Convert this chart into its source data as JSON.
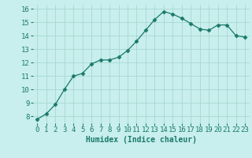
{
  "x": [
    0,
    1,
    2,
    3,
    4,
    5,
    6,
    7,
    8,
    9,
    10,
    11,
    12,
    13,
    14,
    15,
    16,
    17,
    18,
    19,
    20,
    21,
    22,
    23
  ],
  "y": [
    7.8,
    8.2,
    8.9,
    10.0,
    11.0,
    11.2,
    11.9,
    12.2,
    12.2,
    12.4,
    12.9,
    13.6,
    14.4,
    15.2,
    15.8,
    15.6,
    15.3,
    14.9,
    14.5,
    14.4,
    14.8,
    14.8,
    14.0,
    13.9
  ],
  "xlabel": "Humidex (Indice chaleur)",
  "xlim": [
    -0.5,
    23.5
  ],
  "ylim": [
    7.5,
    16.3
  ],
  "yticks": [
    8,
    9,
    10,
    11,
    12,
    13,
    14,
    15,
    16
  ],
  "xticks": [
    0,
    1,
    2,
    3,
    4,
    5,
    6,
    7,
    8,
    9,
    10,
    11,
    12,
    13,
    14,
    15,
    16,
    17,
    18,
    19,
    20,
    21,
    22,
    23
  ],
  "line_color": "#1a7a6a",
  "marker": "D",
  "marker_size": 2.5,
  "bg_color": "#c8eeee",
  "grid_color": "#a8d8d0",
  "xlabel_fontsize": 7,
  "tick_fontsize": 6.5
}
